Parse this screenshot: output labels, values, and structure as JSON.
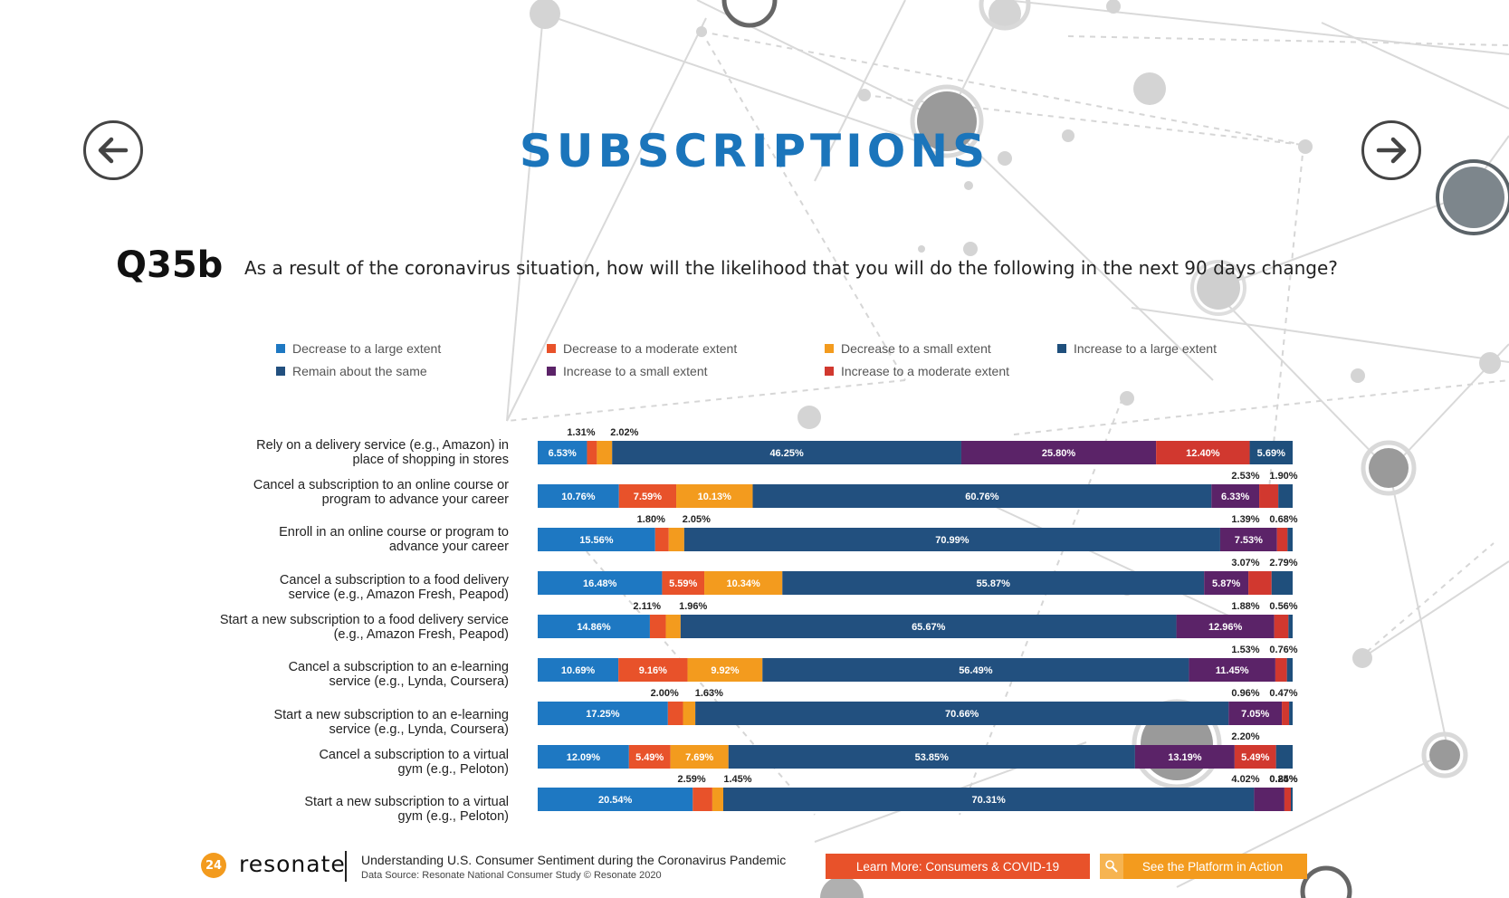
{
  "header": {
    "title": "SUBSCRIPTIONS",
    "question_code": "Q35b",
    "question_text": "As a result of the coronavirus situation, how will the likelihood that you will do the following in the next 90 days change?"
  },
  "nav": {
    "prev_icon": "arrow-left-icon",
    "next_icon": "arrow-right-icon"
  },
  "colors": {
    "accent": "#1b75bb",
    "dec_large": "#1e78c2",
    "dec_moderate": "#e8522a",
    "dec_small": "#f39b1e",
    "remain": "#22507f",
    "inc_small": "#5b2368",
    "inc_moderate": "#d1382f",
    "inc_large": "#1f4f7c"
  },
  "chart_data": {
    "type": "bar",
    "orientation": "horizontal",
    "stacked": true,
    "normalized": true,
    "legend": [
      {
        "label": "Decrease to a large extent",
        "color": "#1e78c2"
      },
      {
        "label": "Decrease to a moderate extent",
        "color": "#e8522a"
      },
      {
        "label": "Decrease to a small extent",
        "color": "#f39b1e"
      },
      {
        "label": "Increase to a large extent",
        "color": "#1f4f7c"
      },
      {
        "label": "Remain about the same",
        "color": "#22507f"
      },
      {
        "label": "Increase to a small extent",
        "color": "#5b2368"
      },
      {
        "label": "Increase to a moderate extent",
        "color": "#d1382f"
      }
    ],
    "categories": [
      [
        "Rely on a delivery service (e.g., Amazon) in",
        "place of shopping in stores"
      ],
      [
        "Cancel a subscription to an online course or",
        "program to advance your career"
      ],
      [
        "Enroll in an online course or program to",
        "advance your career"
      ],
      [
        "Cancel a subscription to a food delivery",
        "service (e.g., Amazon Fresh, Peapod)"
      ],
      [
        "Start a new subscription to a food delivery service",
        "(e.g., Amazon Fresh, Peapod)"
      ],
      [
        "Cancel a subscription to an e-learning",
        "service (e.g., Lynda, Coursera)"
      ],
      [
        "Start a new subscription to an e-learning",
        "service (e.g., Lynda, Coursera)"
      ],
      [
        "Cancel a subscription to a virtual",
        "gym (e.g., Peloton)"
      ],
      [
        "Start a new subscription to a virtual",
        "gym (e.g., Peloton)"
      ]
    ],
    "series_order": [
      "Decrease to a large extent",
      "Decrease to a moderate extent",
      "Decrease to a small extent",
      "Remain about the same",
      "Increase to a small extent",
      "Increase to a moderate extent",
      "Increase to a large extent"
    ],
    "rows": [
      {
        "values": [
          6.53,
          1.31,
          2.02,
          46.25,
          25.8,
          12.4,
          5.69
        ],
        "labels": [
          "6.53%",
          "1.31%",
          "2.02%",
          "46.25%",
          "25.80%",
          "12.40%",
          "5.69%"
        ]
      },
      {
        "values": [
          10.76,
          7.59,
          10.13,
          60.76,
          6.33,
          2.53,
          1.9
        ],
        "labels": [
          "10.76%",
          "7.59%",
          "10.13%",
          "60.76%",
          "6.33%",
          "2.53%",
          "1.90%"
        ]
      },
      {
        "values": [
          15.56,
          1.8,
          2.05,
          70.99,
          7.53,
          1.39,
          0.68
        ],
        "labels": [
          "15.56%",
          "1.80%",
          "2.05%",
          "70.99%",
          "7.53%",
          "1.39%",
          "0.68%"
        ]
      },
      {
        "values": [
          16.48,
          5.59,
          10.34,
          55.87,
          5.87,
          3.07,
          2.79
        ],
        "labels": [
          "16.48%",
          "5.59%",
          "10.34%",
          "55.87%",
          "5.87%",
          "3.07%",
          "2.79%"
        ]
      },
      {
        "values": [
          14.86,
          2.11,
          1.96,
          65.67,
          12.96,
          1.88,
          0.56
        ],
        "labels": [
          "14.86%",
          "2.11%",
          "1.96%",
          "65.67%",
          "12.96%",
          "1.88%",
          "0.56%"
        ]
      },
      {
        "values": [
          10.69,
          9.16,
          9.92,
          56.49,
          11.45,
          1.53,
          0.76
        ],
        "labels": [
          "10.69%",
          "9.16%",
          "9.92%",
          "56.49%",
          "11.45%",
          "1.53%",
          "0.76%"
        ]
      },
      {
        "values": [
          17.25,
          2.0,
          1.63,
          70.66,
          7.05,
          0.96,
          0.47
        ],
        "labels": [
          "17.25%",
          "2.00%",
          "1.63%",
          "70.66%",
          "7.05%",
          "0.96%",
          "0.47%"
        ]
      },
      {
        "values": [
          12.09,
          5.49,
          7.69,
          53.85,
          13.19,
          5.49,
          2.2
        ],
        "labels": [
          "12.09%",
          "5.49%",
          "7.69%",
          "53.85%",
          "13.19%",
          "5.49%",
          "2.20%"
        ]
      },
      {
        "values": [
          20.54,
          2.59,
          1.45,
          70.31,
          4.02,
          0.85,
          0.24
        ],
        "labels": [
          "20.54%",
          "2.59%",
          "1.45%",
          "70.31%",
          "4.02%",
          "0.85%",
          "0.24%"
        ]
      }
    ]
  },
  "footer": {
    "page_number": "24",
    "logo_text": "resonate",
    "title": "Understanding U.S. Consumer Sentiment during the Coronavirus Pandemic",
    "source": "Data Source: Resonate National Consumer Study © Resonate 2020",
    "cta_primary": "Learn More: Consumers & COVID-19",
    "cta_secondary": "See the Platform in Action",
    "cta_secondary_icon": "pointer-icon"
  }
}
